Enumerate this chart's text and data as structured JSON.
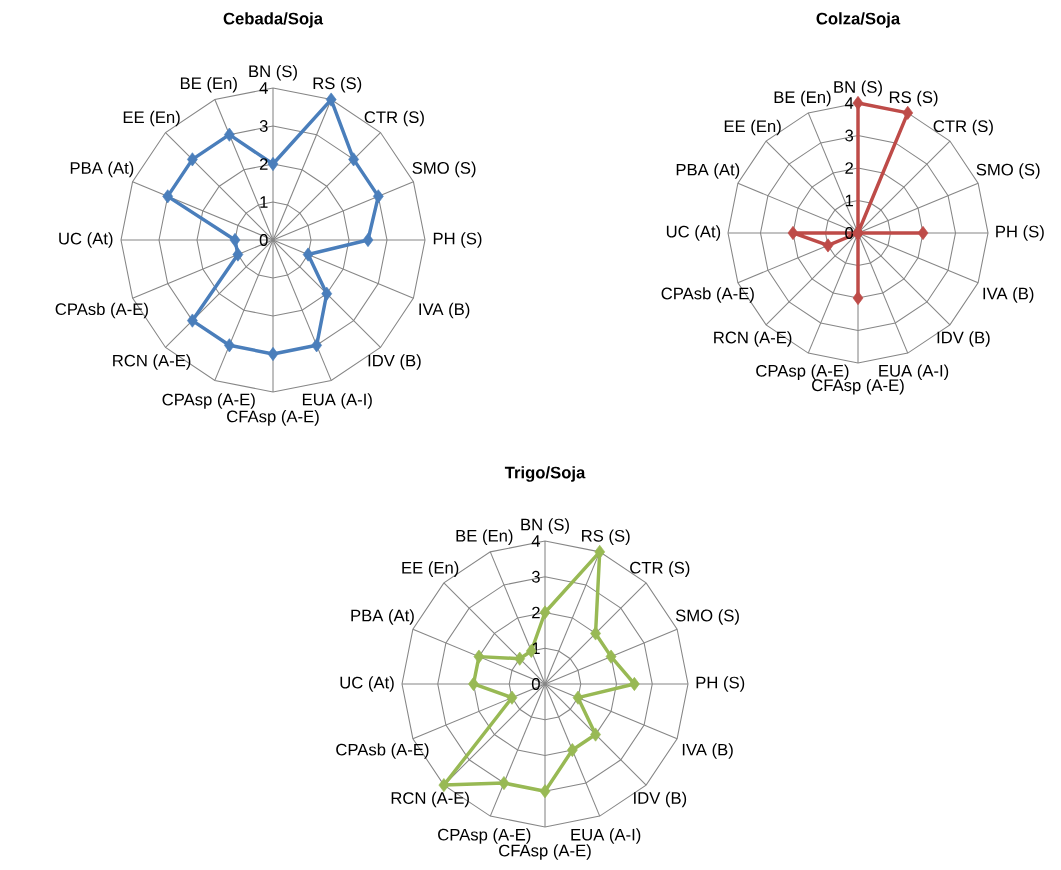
{
  "chart_data": [
    {
      "type": "radar",
      "title": "Cebada/Soja",
      "categories": [
        "BN (S)",
        "RS (S)",
        "CTR (S)",
        "SMO (S)",
        "PH (S)",
        "IVA (B)",
        "IDV (B)",
        "EUA (A-I)",
        "CFAsp (A-E)",
        "CPAsp (A-E)",
        "RCN (A-E)",
        "CPAsb (A-E)",
        "UC (At)",
        "PBA (At)",
        "EE (En)",
        "BE (En)"
      ],
      "series": [
        {
          "color": "#4a7ebb",
          "values": [
            2,
            4,
            3,
            3,
            2.5,
            1,
            2,
            3,
            3,
            3,
            3,
            1,
            1,
            3,
            3,
            3
          ]
        }
      ],
      "ylim": [
        0,
        4
      ],
      "yticks": [
        0,
        1,
        2,
        3,
        4
      ],
      "grid": true,
      "marker": "diamond"
    },
    {
      "type": "radar",
      "title": "Colza/Soja",
      "categories": [
        "BN (S)",
        "RS (S)",
        "CTR (S)",
        "SMO (S)",
        "PH (S)",
        "IVA (B)",
        "IDV (B)",
        "EUA (A-I)",
        "CFAsp (A-E)",
        "CPAsp (A-E)",
        "RCN (A-E)",
        "CPAsb (A-E)",
        "UC (At)",
        "PBA (At)",
        "EE (En)",
        "BE (En)"
      ],
      "series": [
        {
          "color": "#be4b48",
          "values": [
            4,
            4,
            0,
            0,
            2,
            0,
            0,
            0,
            2,
            0,
            0,
            1,
            2,
            0,
            0,
            0
          ]
        }
      ],
      "ylim": [
        0,
        4
      ],
      "yticks": [
        0,
        1,
        2,
        3,
        4
      ],
      "grid": true,
      "marker": "diamond"
    },
    {
      "type": "radar",
      "title": "Trigo/Soja",
      "categories": [
        "BN (S)",
        "RS (S)",
        "CTR (S)",
        "SMO (S)",
        "PH (S)",
        "IVA (B)",
        "IDV (B)",
        "EUA (A-I)",
        "CFAsp (A-E)",
        "CPAsp (A-E)",
        "RCN (A-E)",
        "CPAsb (A-E)",
        "UC (At)",
        "PBA (At)",
        "EE (En)",
        "BE (En)"
      ],
      "series": [
        {
          "color": "#98b954",
          "values": [
            2,
            4,
            2,
            2,
            2.5,
            1,
            2,
            2,
            3,
            3,
            4,
            1,
            2,
            2,
            1,
            1
          ]
        }
      ],
      "ylim": [
        0,
        4
      ],
      "yticks": [
        0,
        1,
        2,
        3,
        4
      ],
      "grid": true,
      "marker": "diamond"
    }
  ]
}
